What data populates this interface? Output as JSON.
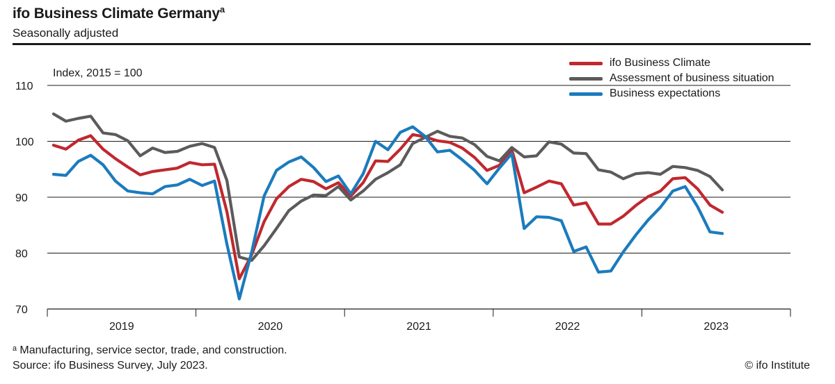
{
  "header": {
    "title": "ifo Business Climate Germany",
    "title_sup": "a",
    "subtitle": "Seasonally adjusted"
  },
  "footer": {
    "footnote": "ᵃ Manufacturing, service sector, trade, and construction.",
    "source": "Source: ifo Business Survey, July 2023.",
    "copyright": "© ifo Institute"
  },
  "chart_data": {
    "type": "line",
    "title": "ifo Business Climate Germany",
    "subtitle": "Seasonally adjusted",
    "ylabel": "Index, 2015 = 100",
    "ylim": [
      70,
      110
    ],
    "yticks": [
      70,
      80,
      90,
      100,
      110
    ],
    "year_labels": [
      "2019",
      "2020",
      "2021",
      "2022",
      "2023"
    ],
    "x_start": "2019-01",
    "x_end": "2023-07",
    "legend_position": "top-right",
    "series": [
      {
        "name": "ifo Business Climate",
        "color": "#c0282e",
        "values": [
          99.3,
          98.6,
          100.2,
          101.0,
          98.6,
          96.9,
          95.4,
          94.0,
          94.6,
          94.9,
          95.2,
          96.2,
          95.8,
          95.9,
          87.4,
          75.4,
          79.7,
          85.6,
          89.7,
          91.9,
          93.2,
          92.8,
          91.5,
          92.6,
          90.2,
          92.6,
          96.5,
          96.4,
          98.6,
          101.2,
          100.8,
          100.1,
          99.8,
          98.8,
          97.1,
          94.8,
          95.7,
          98.5,
          90.8,
          91.8,
          92.9,
          92.4,
          88.6,
          89.0,
          85.2,
          85.2,
          86.6,
          88.5,
          90.1,
          91.1,
          93.3,
          93.5,
          91.5,
          88.6,
          87.3
        ]
      },
      {
        "name": "Assessment of business situation",
        "color": "#5b5b5b",
        "values": [
          104.9,
          103.6,
          104.1,
          104.5,
          101.5,
          101.2,
          100.1,
          97.4,
          98.8,
          98.0,
          98.2,
          99.1,
          99.6,
          98.9,
          93.0,
          79.3,
          78.7,
          81.3,
          84.4,
          87.6,
          89.3,
          90.4,
          90.3,
          91.9,
          89.5,
          91.1,
          93.2,
          94.4,
          95.8,
          99.6,
          100.7,
          101.8,
          100.9,
          100.6,
          99.4,
          97.3,
          96.5,
          98.9,
          97.2,
          97.4,
          99.9,
          99.5,
          97.9,
          97.8,
          94.9,
          94.5,
          93.3,
          94.2,
          94.4,
          94.1,
          95.5,
          95.3,
          94.8,
          93.7,
          91.3
        ]
      },
      {
        "name": "Business expectations",
        "color": "#1b7bbd",
        "values": [
          94.1,
          93.9,
          96.4,
          97.5,
          95.8,
          92.9,
          91.1,
          90.8,
          90.6,
          91.9,
          92.2,
          93.2,
          92.1,
          92.9,
          81.6,
          71.8,
          80.2,
          90.2,
          94.8,
          96.3,
          97.2,
          95.3,
          92.8,
          93.8,
          90.6,
          94.2,
          100.0,
          98.5,
          101.6,
          102.6,
          100.9,
          98.1,
          98.4,
          96.7,
          94.8,
          92.4,
          95.2,
          97.8,
          84.4,
          86.5,
          86.4,
          85.8,
          80.3,
          81.1,
          76.6,
          76.8,
          80.2,
          83.2,
          85.9,
          88.2,
          91.1,
          91.9,
          88.3,
          83.8,
          83.5
        ]
      }
    ]
  }
}
